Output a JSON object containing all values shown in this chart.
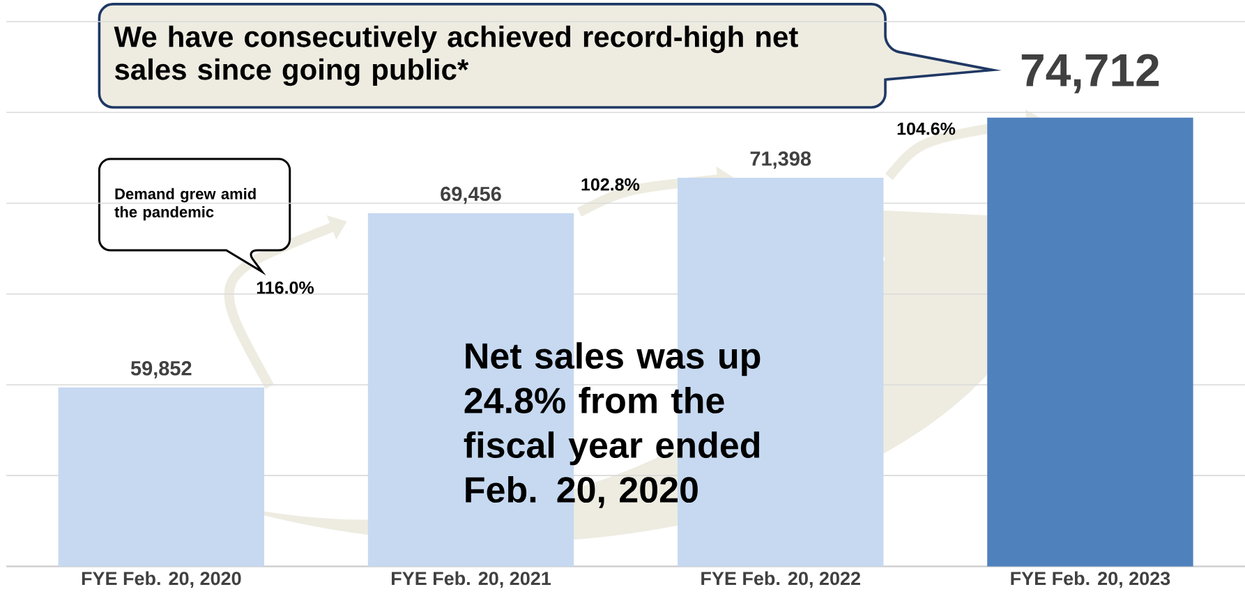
{
  "chart_data": {
    "type": "bar",
    "categories": [
      "FYE Feb. 20, 2020",
      "FYE Feb. 20, 2021",
      "FYE Feb. 20, 2022",
      "FYE Feb. 20, 2023"
    ],
    "values": [
      59852,
      69456,
      71398,
      74712
    ],
    "colors": [
      "#c6d9f1",
      "#c6d9f1",
      "#c6d9f1",
      "#4f81bd"
    ],
    "value_labels": [
      "59,852",
      "69,456",
      "71,398",
      "74,712"
    ],
    "ylim": [
      50000,
      80000
    ],
    "yticks": [
      {
        "value": 50000,
        "label": null
      },
      {
        "value": 55000,
        "label": null
      },
      {
        "value": 60000,
        "label": null
      },
      {
        "value": 65000,
        "label": null
      },
      {
        "value": 70000,
        "label": null
      },
      {
        "value": 75000,
        "label": null
      },
      {
        "value": 80000,
        "label": null
      }
    ],
    "tick_labels": "x",
    "grid": "y",
    "annotations": [
      "Demand grew amid the pandemic",
      "We have consecutively achieved record-high net sales since going public*",
      "116.0%",
      "102.8%",
      "104.6%",
      "Net sales was up 24.8% from the fiscal year ended Feb. 20, 2020"
    ]
  }
}
